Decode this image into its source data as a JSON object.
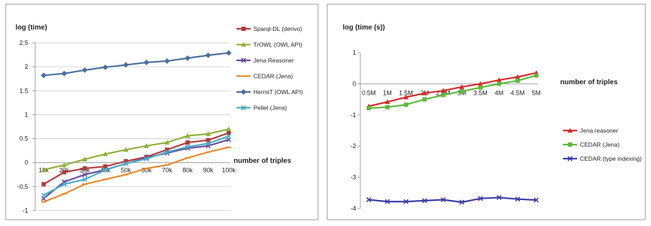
{
  "chart_data": [
    {
      "type": "line",
      "ylabel": "log (time)",
      "xlabel": "number of triples",
      "categories": [
        "10k",
        "20k",
        "30k",
        "40k",
        "50k",
        "60k",
        "70k",
        "80k",
        "90k",
        "100k"
      ],
      "ylim": [
        -1,
        2.5
      ],
      "yticks": [
        "-1",
        "-0.5",
        "0",
        "0.5",
        "1",
        "1.5",
        "2",
        "2.5"
      ],
      "grid": true,
      "legend": "right",
      "series": [
        {
          "name": "Sparql-DL (derivo)",
          "color": "#b03a3a",
          "marker": "square",
          "values": [
            -0.45,
            -0.2,
            -0.12,
            -0.08,
            0.03,
            0.12,
            0.27,
            0.42,
            0.47,
            0.62
          ]
        },
        {
          "name": "TrOWL (OWL API)",
          "color": "#8fb03a",
          "marker": "triangle",
          "values": [
            -0.15,
            -0.05,
            0.07,
            0.18,
            0.27,
            0.35,
            0.42,
            0.56,
            0.6,
            0.7
          ]
        },
        {
          "name": "Jena Reasoner",
          "color": "#6a4a9a",
          "marker": "x",
          "values": [
            -0.75,
            -0.4,
            -0.25,
            -0.15,
            -0.02,
            0.1,
            0.2,
            0.3,
            0.35,
            0.48
          ]
        },
        {
          "name": "CEDAR (Jena)",
          "color": "#e8892b",
          "marker": "dash",
          "values": [
            -0.82,
            -0.65,
            -0.45,
            -0.35,
            -0.25,
            -0.12,
            -0.05,
            0.1,
            0.22,
            0.32
          ]
        },
        {
          "name": "HermiT (OWL API)",
          "color": "#4a6e9e",
          "marker": "diamond",
          "values": [
            1.82,
            1.86,
            1.93,
            1.99,
            2.04,
            2.09,
            2.12,
            2.18,
            2.24,
            2.29
          ]
        },
        {
          "name": "Pellet (Jena)",
          "color": "#4aaac8",
          "marker": "x",
          "values": [
            -0.68,
            -0.45,
            -0.35,
            -0.15,
            -0.02,
            0.08,
            0.22,
            0.33,
            0.4,
            0.55
          ]
        }
      ]
    },
    {
      "type": "line",
      "ylabel": "log (time (s))",
      "xlabel": "number of triples",
      "categories": [
        "0.5M",
        "1M",
        "1.5M",
        "2M",
        "2.5M",
        "3M",
        "3.5M",
        "4M",
        "4.5M",
        "5M"
      ],
      "ylim": [
        -4,
        1
      ],
      "yticks": [
        "-4",
        "-3",
        "-2",
        "-1",
        "0",
        "1"
      ],
      "grid": false,
      "legend": "right",
      "series": [
        {
          "name": "Jena reasoner",
          "color": "#d62b2b",
          "marker": "triangle",
          "values": [
            -0.72,
            -0.58,
            -0.43,
            -0.3,
            -0.22,
            -0.1,
            0.0,
            0.12,
            0.22,
            0.35
          ]
        },
        {
          "name": "CEDAR (Jena)",
          "color": "#5cb83a",
          "marker": "square",
          "values": [
            -0.78,
            -0.75,
            -0.67,
            -0.5,
            -0.36,
            -0.24,
            -0.12,
            0.0,
            0.1,
            0.27
          ]
        },
        {
          "name": "CEDAR (type indexing)",
          "color": "#3a3aa8",
          "marker": "x",
          "values": [
            -3.72,
            -3.78,
            -3.78,
            -3.75,
            -3.72,
            -3.8,
            -3.68,
            -3.65,
            -3.7,
            -3.73
          ]
        }
      ]
    }
  ]
}
